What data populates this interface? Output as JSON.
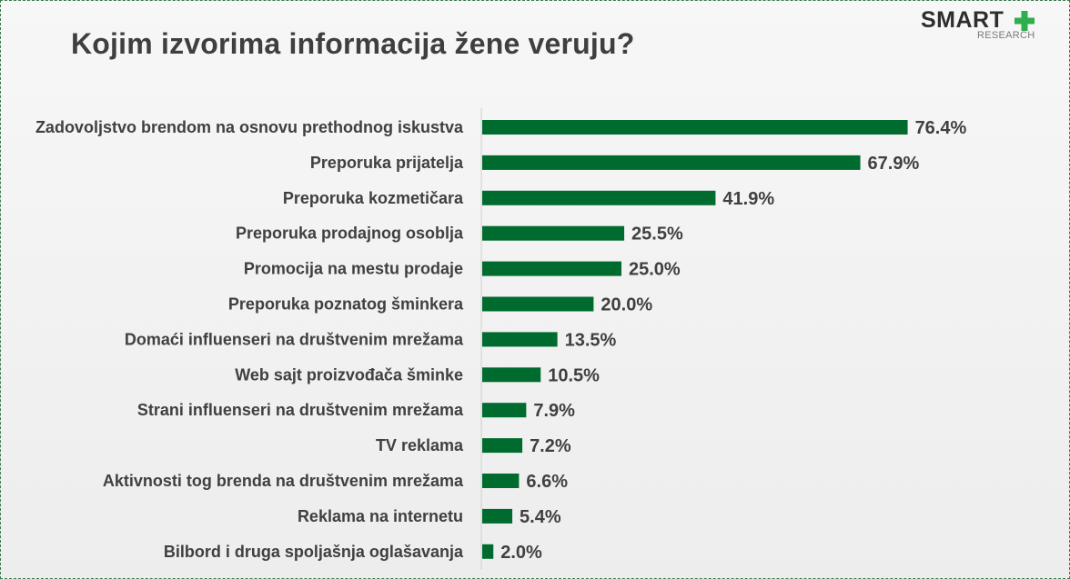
{
  "header": {
    "title": "Kojim izvorima informacija žene veruju?"
  },
  "logo": {
    "word": "SMART",
    "sub": "RESEARCH",
    "plus_color": "#2fae4e"
  },
  "chart_data": {
    "type": "bar",
    "orientation": "horizontal",
    "title": "Kojim izvorima informacija žene veruju?",
    "xlabel": "",
    "ylabel": "",
    "xlim": [
      0,
      80
    ],
    "grid": false,
    "legend": "none",
    "bar_color": "#006b2e",
    "categories": [
      "Zadovoljstvo brendom na osnovu prethodnog iskustva",
      "Preporuka prijatelja",
      "Preporuka kozmetičara",
      "Preporuka prodajnog osoblja",
      "Promocija na mestu prodaje",
      "Preporuka poznatog šminkera",
      "Domaći influenseri na društvenim mrežama",
      "Web sajt proizvođača šminke",
      "Strani influenseri na društvenim mrežama",
      "TV reklama",
      "Aktivnosti tog brenda na društvenim mrežama",
      "Reklama na internetu",
      "Bilbord i druga spoljašnja oglašavanja"
    ],
    "values": [
      76.4,
      67.9,
      41.9,
      25.5,
      25.0,
      20.0,
      13.5,
      10.5,
      7.9,
      7.2,
      6.6,
      5.4,
      2.0
    ],
    "value_labels": [
      "76.4%",
      "67.9%",
      "41.9%",
      "25.5%",
      "25.0%",
      "20.0%",
      "13.5%",
      "10.5%",
      "7.9%",
      "7.2%",
      "6.6%",
      "5.4%",
      "2.0%"
    ]
  }
}
